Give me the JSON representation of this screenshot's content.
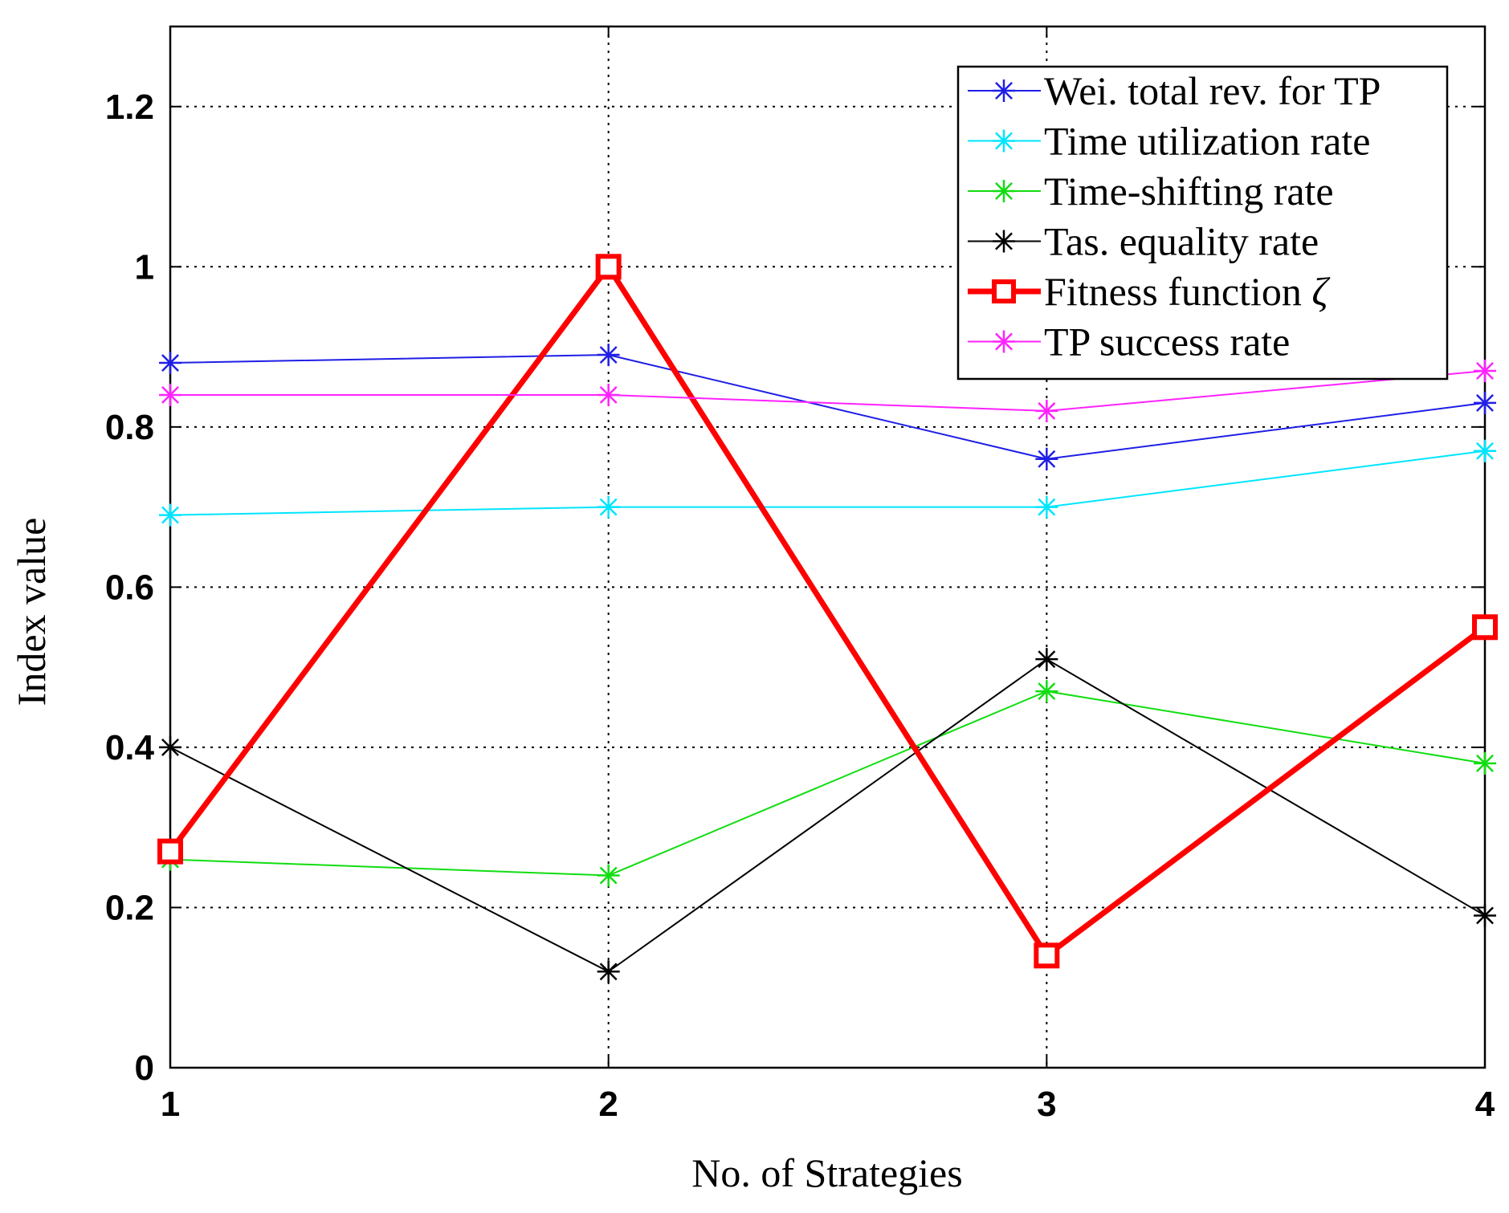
{
  "chart_data": {
    "type": "line",
    "title": "",
    "xlabel": "No. of Strategies",
    "ylabel": "Index value",
    "x": [
      1,
      2,
      3,
      4
    ],
    "xlim": [
      1,
      4
    ],
    "ylim": [
      0,
      1.3
    ],
    "xticks": [
      "1",
      "2",
      "3",
      "4"
    ],
    "yticks": [
      {
        "value": 0,
        "label": "0"
      },
      {
        "value": 0.2,
        "label": "0.2"
      },
      {
        "value": 0.4,
        "label": "0.4"
      },
      {
        "value": 0.6,
        "label": "0.6"
      },
      {
        "value": 0.8,
        "label": "0.8"
      },
      {
        "value": 1,
        "label": "1"
      },
      {
        "value": 1.2,
        "label": "1.2"
      }
    ],
    "grid": true,
    "legend_position": "top-right",
    "series": [
      {
        "name": "Wei. total rev. for TP",
        "color": "#1f1fe6",
        "marker": "star",
        "values": [
          0.88,
          0.89,
          0.76,
          0.83
        ]
      },
      {
        "name": "Time utilization rate",
        "color": "#00e5ff",
        "marker": "star",
        "values": [
          0.69,
          0.7,
          0.7,
          0.77
        ]
      },
      {
        "name": "Time-shifting rate",
        "color": "#11dd11",
        "marker": "star",
        "values": [
          0.26,
          0.24,
          0.47,
          0.38
        ]
      },
      {
        "name": "Tas. equality rate",
        "color": "#000000",
        "marker": "star",
        "values": [
          0.4,
          0.12,
          0.51,
          0.19
        ]
      },
      {
        "name": "Fitness function",
        "symbol": "ζ",
        "color": "#ff0000",
        "marker": "square",
        "bold": true,
        "values": [
          0.27,
          1.0,
          0.14,
          0.55
        ]
      },
      {
        "name": "TP success rate",
        "color": "#ff22ff",
        "marker": "star",
        "values": [
          0.84,
          0.84,
          0.82,
          0.87
        ]
      }
    ]
  }
}
